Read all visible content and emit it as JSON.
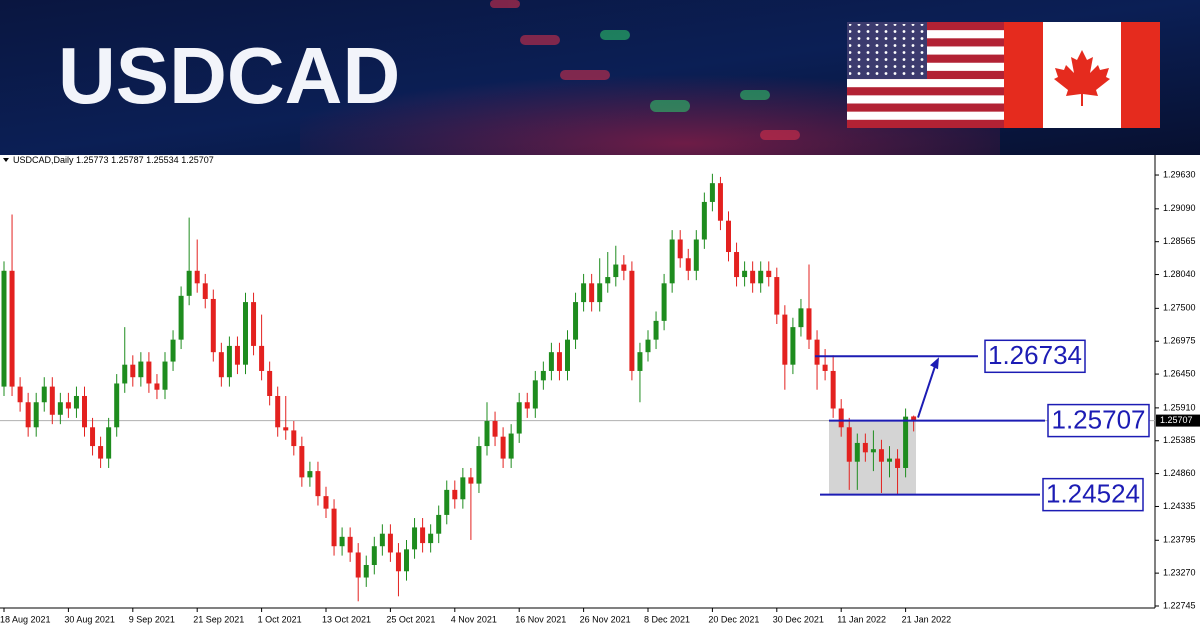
{
  "header": {
    "title": "USDCAD"
  },
  "chart_data": {
    "type": "candlestick",
    "symbol": "USDCAD,Daily",
    "categories": [
      "18 Aug 2021",
      null,
      null,
      null,
      null,
      null,
      null,
      null,
      "30 Aug 2021",
      null,
      null,
      null,
      null,
      null,
      null,
      null,
      "9 Sep 2021",
      null,
      null,
      null,
      null,
      null,
      null,
      null,
      "21 Sep 2021",
      null,
      null,
      null,
      null,
      null,
      null,
      null,
      "1 Oct 2021",
      null,
      null,
      null,
      null,
      null,
      null,
      null,
      "13 Oct 2021",
      null,
      null,
      null,
      null,
      null,
      null,
      null,
      "25 Oct 2021",
      null,
      null,
      null,
      null,
      null,
      null,
      null,
      "4 Nov 2021",
      null,
      null,
      null,
      null,
      null,
      null,
      null,
      "16 Nov 2021",
      null,
      null,
      null,
      null,
      null,
      null,
      null,
      "26 Nov 2021",
      null,
      null,
      null,
      null,
      null,
      null,
      null,
      "8 Dec 2021",
      null,
      null,
      null,
      null,
      null,
      null,
      null,
      "20 Dec 2021",
      null,
      null,
      null,
      null,
      null,
      null,
      null,
      "30 Dec 2021",
      null,
      null,
      null,
      null,
      null,
      null,
      null,
      "11 Jan 2022",
      null,
      null,
      null,
      null,
      null,
      null,
      null,
      "21 Jan 2022",
      null
    ],
    "ohlc": [
      [
        1.2625,
        1.2825,
        1.261,
        1.281
      ],
      [
        1.281,
        1.29,
        1.261,
        1.2625
      ],
      [
        1.2625,
        1.264,
        1.2585,
        1.26
      ],
      [
        1.26,
        1.2615,
        1.2545,
        1.256
      ],
      [
        1.256,
        1.2615,
        1.2545,
        1.26
      ],
      [
        1.26,
        1.264,
        1.2585,
        1.2625
      ],
      [
        1.2625,
        1.264,
        1.2565,
        1.258
      ],
      [
        1.258,
        1.2615,
        1.2565,
        1.26
      ],
      [
        1.26,
        1.2615,
        1.2575,
        1.259
      ],
      [
        1.259,
        1.2625,
        1.2575,
        1.261
      ],
      [
        1.261,
        1.2625,
        1.2545,
        1.256
      ],
      [
        1.256,
        1.2575,
        1.2515,
        1.253
      ],
      [
        1.253,
        1.2545,
        1.2495,
        1.251
      ],
      [
        1.251,
        1.2575,
        1.2495,
        1.256
      ],
      [
        1.256,
        1.2645,
        1.2545,
        1.263
      ],
      [
        1.263,
        1.272,
        1.2615,
        1.266
      ],
      [
        1.266,
        1.2675,
        1.2625,
        1.264
      ],
      [
        1.264,
        1.268,
        1.2625,
        1.2665
      ],
      [
        1.2665,
        1.268,
        1.2615,
        1.263
      ],
      [
        1.263,
        1.2645,
        1.2605,
        1.262
      ],
      [
        1.262,
        1.268,
        1.2605,
        1.2665
      ],
      [
        1.2665,
        1.2715,
        1.265,
        1.27
      ],
      [
        1.27,
        1.2785,
        1.2685,
        1.277
      ],
      [
        1.277,
        1.2895,
        1.2755,
        1.281
      ],
      [
        1.281,
        1.286,
        1.2775,
        1.279
      ],
      [
        1.279,
        1.2805,
        1.275,
        1.2765
      ],
      [
        1.2765,
        1.278,
        1.2665,
        1.268
      ],
      [
        1.268,
        1.2695,
        1.2625,
        1.264
      ],
      [
        1.264,
        1.2705,
        1.2625,
        1.269
      ],
      [
        1.269,
        1.2705,
        1.2645,
        1.266
      ],
      [
        1.266,
        1.2775,
        1.2645,
        1.276
      ],
      [
        1.276,
        1.2775,
        1.2675,
        1.269
      ],
      [
        1.269,
        1.274,
        1.2635,
        1.265
      ],
      [
        1.265,
        1.2665,
        1.2595,
        1.261
      ],
      [
        1.261,
        1.2625,
        1.2545,
        1.256
      ],
      [
        1.256,
        1.261,
        1.254,
        1.2555
      ],
      [
        1.2555,
        1.257,
        1.2515,
        1.253
      ],
      [
        1.253,
        1.2545,
        1.2465,
        1.248
      ],
      [
        1.248,
        1.2505,
        1.2465,
        1.249
      ],
      [
        1.249,
        1.2505,
        1.2435,
        1.245
      ],
      [
        1.245,
        1.2465,
        1.2415,
        1.243
      ],
      [
        1.243,
        1.2445,
        1.2355,
        1.237
      ],
      [
        1.237,
        1.24,
        1.2355,
        1.2385
      ],
      [
        1.2385,
        1.24,
        1.2345,
        1.236
      ],
      [
        1.236,
        1.2375,
        1.2282,
        1.232
      ],
      [
        1.232,
        1.2355,
        1.2305,
        1.234
      ],
      [
        1.234,
        1.2385,
        1.2325,
        1.237
      ],
      [
        1.237,
        1.2405,
        1.2355,
        1.239
      ],
      [
        1.239,
        1.2405,
        1.2345,
        1.236
      ],
      [
        1.236,
        1.2375,
        1.229,
        1.233
      ],
      [
        1.233,
        1.238,
        1.2315,
        1.2365
      ],
      [
        1.2365,
        1.2415,
        1.235,
        1.24
      ],
      [
        1.24,
        1.2415,
        1.236,
        1.2375
      ],
      [
        1.2375,
        1.2405,
        1.236,
        1.239
      ],
      [
        1.239,
        1.2435,
        1.2375,
        1.242
      ],
      [
        1.242,
        1.2475,
        1.2405,
        1.246
      ],
      [
        1.246,
        1.2475,
        1.243,
        1.2445
      ],
      [
        1.2445,
        1.2495,
        1.243,
        1.248
      ],
      [
        1.248,
        1.2495,
        1.238,
        1.247
      ],
      [
        1.247,
        1.2545,
        1.2455,
        1.253
      ],
      [
        1.253,
        1.26,
        1.2515,
        1.257
      ],
      [
        1.257,
        1.2585,
        1.253,
        1.2545
      ],
      [
        1.2545,
        1.256,
        1.2495,
        1.251
      ],
      [
        1.251,
        1.2565,
        1.2495,
        1.255
      ],
      [
        1.255,
        1.2615,
        1.2535,
        1.26
      ],
      [
        1.26,
        1.2615,
        1.2575,
        1.259
      ],
      [
        1.259,
        1.265,
        1.2575,
        1.2635
      ],
      [
        1.2635,
        1.2665,
        1.262,
        1.265
      ],
      [
        1.265,
        1.2695,
        1.2635,
        1.268
      ],
      [
        1.268,
        1.2695,
        1.2635,
        1.265
      ],
      [
        1.265,
        1.2715,
        1.2635,
        1.27
      ],
      [
        1.27,
        1.2775,
        1.2685,
        1.276
      ],
      [
        1.276,
        1.2805,
        1.2745,
        1.279
      ],
      [
        1.279,
        1.2805,
        1.2745,
        1.276
      ],
      [
        1.276,
        1.283,
        1.2745,
        1.279
      ],
      [
        1.279,
        1.284,
        1.2775,
        1.28
      ],
      [
        1.28,
        1.285,
        1.2785,
        1.282
      ],
      [
        1.282,
        1.2835,
        1.2795,
        1.281
      ],
      [
        1.281,
        1.2825,
        1.2635,
        1.265
      ],
      [
        1.265,
        1.2695,
        1.26,
        1.268
      ],
      [
        1.268,
        1.2715,
        1.2665,
        1.27
      ],
      [
        1.27,
        1.2745,
        1.2685,
        1.273
      ],
      [
        1.273,
        1.2805,
        1.2715,
        1.279
      ],
      [
        1.279,
        1.2875,
        1.2775,
        1.286
      ],
      [
        1.286,
        1.2875,
        1.2815,
        1.283
      ],
      [
        1.283,
        1.2845,
        1.2795,
        1.281
      ],
      [
        1.281,
        1.2875,
        1.2795,
        1.286
      ],
      [
        1.286,
        1.2935,
        1.2845,
        1.292
      ],
      [
        1.292,
        1.2965,
        1.2905,
        1.295
      ],
      [
        1.295,
        1.296,
        1.2875,
        1.289
      ],
      [
        1.289,
        1.2905,
        1.2825,
        1.284
      ],
      [
        1.284,
        1.2855,
        1.2785,
        1.28
      ],
      [
        1.28,
        1.2825,
        1.2785,
        1.281
      ],
      [
        1.281,
        1.2825,
        1.2775,
        1.279
      ],
      [
        1.279,
        1.2825,
        1.2775,
        1.281
      ],
      [
        1.281,
        1.2825,
        1.2785,
        1.28
      ],
      [
        1.28,
        1.2815,
        1.2725,
        1.274
      ],
      [
        1.274,
        1.2755,
        1.262,
        1.266
      ],
      [
        1.266,
        1.2735,
        1.2645,
        1.272
      ],
      [
        1.272,
        1.2765,
        1.2705,
        1.275
      ],
      [
        1.275,
        1.282,
        1.2685,
        1.27
      ],
      [
        1.27,
        1.2715,
        1.262,
        1.266
      ],
      [
        1.266,
        1.2685,
        1.2635,
        1.265
      ],
      [
        1.265,
        1.2675,
        1.2575,
        1.259
      ],
      [
        1.259,
        1.2605,
        1.2545,
        1.256
      ],
      [
        1.256,
        1.2575,
        1.246,
        1.2505
      ],
      [
        1.2505,
        1.255,
        1.246,
        1.2535
      ],
      [
        1.2535,
        1.255,
        1.2505,
        1.252
      ],
      [
        1.252,
        1.2555,
        1.249,
        1.2525
      ],
      [
        1.2525,
        1.254,
        1.2455,
        1.2505
      ],
      [
        1.2505,
        1.253,
        1.248,
        1.251
      ],
      [
        1.251,
        1.2525,
        1.2452,
        1.2495
      ],
      [
        1.2495,
        1.259,
        1.248,
        1.2577
      ],
      [
        1.25773,
        1.25787,
        1.25534,
        1.25707
      ]
    ],
    "up_color": "#1e8c1e",
    "down_color": "#e3211f",
    "ylim": [
      1.22713,
      1.2987
    ],
    "yticks": [
      {
        "value": 1.2963,
        "label": "1.29630"
      },
      {
        "value": 1.2909,
        "label": "1.29090"
      },
      {
        "value": 1.28565,
        "label": "1.28565"
      },
      {
        "value": 1.2804,
        "label": "1.28040"
      },
      {
        "value": 1.275,
        "label": "1.27500"
      },
      {
        "value": 1.26975,
        "label": "1.26975"
      },
      {
        "value": 1.2645,
        "label": "1.26450"
      },
      {
        "value": 1.2591,
        "label": "1.25910"
      },
      {
        "value": 1.25385,
        "label": "1.25385"
      },
      {
        "value": 1.2486,
        "label": "1.24860"
      },
      {
        "value": 1.24335,
        "label": "1.24335"
      },
      {
        "value": 1.23795,
        "label": "1.23795"
      },
      {
        "value": 1.2327,
        "label": "1.23270"
      },
      {
        "value": 1.22745,
        "label": "1.22745"
      }
    ],
    "levels": [
      1.26734,
      1.25707,
      1.24524
    ],
    "level_color": "#1c1cb4"
  }
}
